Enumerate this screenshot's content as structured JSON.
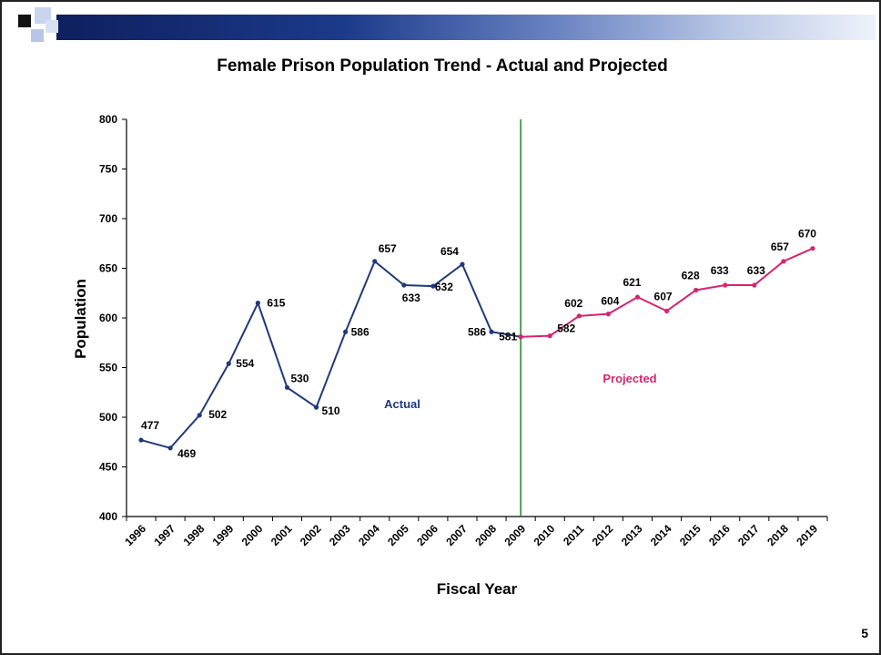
{
  "slide": {
    "page_number": "5"
  },
  "chart_data": {
    "type": "line",
    "title": "Female Prison Population Trend - Actual and Projected",
    "xlabel": "Fiscal Year",
    "ylabel": "Population",
    "ylim": [
      400,
      800
    ],
    "yticks": [
      400,
      450,
      500,
      550,
      600,
      650,
      700,
      750,
      800
    ],
    "categories": [
      "1996",
      "1997",
      "1998",
      "1999",
      "2000",
      "2001",
      "2002",
      "2003",
      "2004",
      "2005",
      "2006",
      "2007",
      "2008",
      "2009",
      "2010",
      "2011",
      "2012",
      "2013",
      "2014",
      "2015",
      "2016",
      "2017",
      "2018",
      "2019"
    ],
    "grid": false,
    "series": [
      {
        "name": "Actual",
        "color": "#1f3a7a",
        "x": [
          "1996",
          "1997",
          "1998",
          "1999",
          "2000",
          "2001",
          "2002",
          "2003",
          "2004",
          "2005",
          "2006",
          "2007",
          "2008",
          "2009"
        ],
        "values": [
          477,
          469,
          502,
          554,
          615,
          530,
          510,
          586,
          657,
          633,
          632,
          654,
          586,
          581
        ]
      },
      {
        "name": "Projected",
        "color": "#d6246e",
        "x": [
          "2009",
          "2010",
          "2011",
          "2012",
          "2013",
          "2014",
          "2015",
          "2016",
          "2017",
          "2018",
          "2019"
        ],
        "values": [
          581,
          582,
          602,
          604,
          621,
          607,
          628,
          633,
          633,
          657,
          670
        ]
      }
    ],
    "divider_year": "2009",
    "divider_color": "#2e8b2e"
  }
}
